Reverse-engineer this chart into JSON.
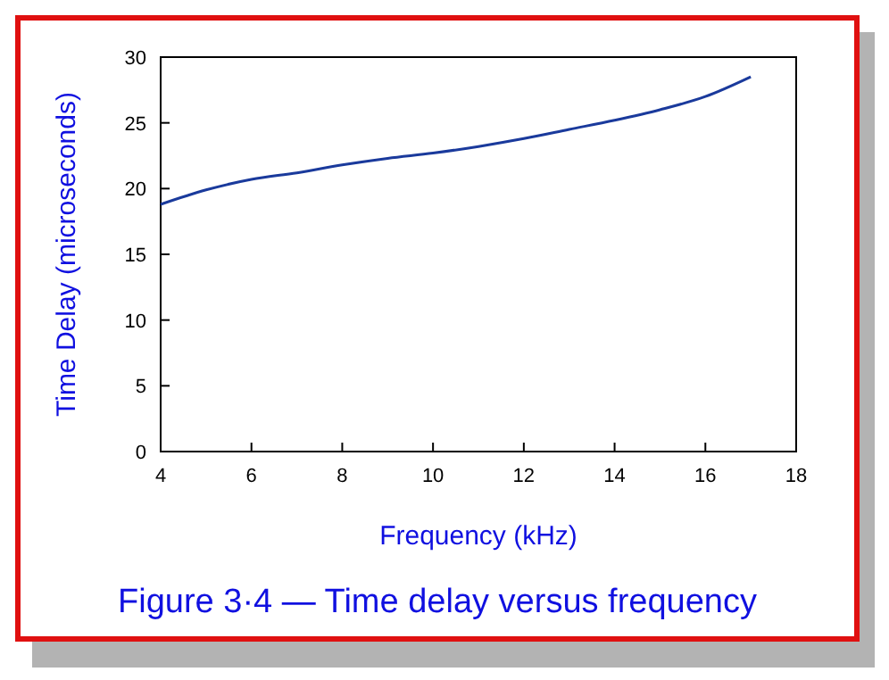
{
  "chart_data": {
    "type": "line",
    "title": "Figure 3·4 — Time delay versus frequency",
    "xlabel": "Frequency (kHz)",
    "ylabel": "Time Delay (microseconds)",
    "x": [
      4,
      5,
      6,
      7,
      8,
      9,
      10,
      11,
      12,
      13,
      14,
      15,
      16,
      17
    ],
    "series": [
      {
        "color": "#1a3a9c",
        "values": [
          18.8,
          19.9,
          20.7,
          21.2,
          21.8,
          22.3,
          22.7,
          23.2,
          23.8,
          24.5,
          25.2,
          26.0,
          27.0,
          28.5
        ]
      }
    ],
    "xlim": [
      4,
      18
    ],
    "xticks": [
      4,
      6,
      8,
      10,
      12,
      14,
      16,
      18
    ],
    "ylim": [
      0,
      30
    ],
    "yticks": [
      0,
      5,
      10,
      15,
      20,
      25,
      30
    ],
    "grid": false,
    "marker": "none",
    "line_style": "solid"
  }
}
